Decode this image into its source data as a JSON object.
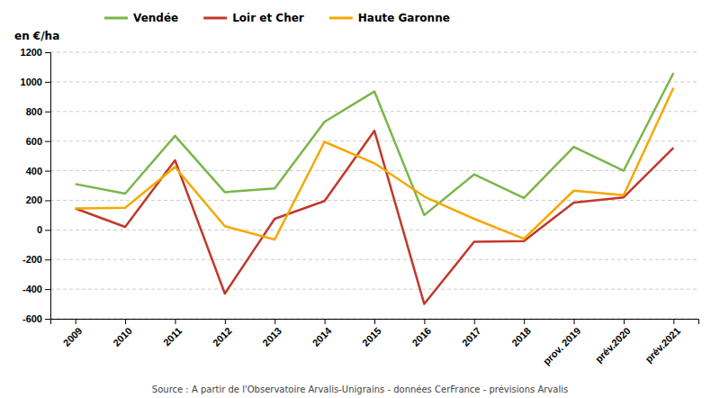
{
  "chart_data": {
    "type": "line",
    "y_label": "en €/ha",
    "annotations": [
      "Source : A partir de l'Observatoire Arvalis-Unigrains - données CerFrance - prévisions Arvalis"
    ],
    "categories": [
      "2009",
      "2010",
      "2011",
      "2012",
      "2013",
      "2014",
      "2015",
      "2016",
      "2017",
      "2018",
      "prov. 2019",
      "prév.2020",
      "prév.2021"
    ],
    "series": [
      {
        "name": "Vendée",
        "color": "#7ab648",
        "values": [
          310,
          245,
          635,
          255,
          280,
          730,
          935,
          100,
          375,
          215,
          560,
          400,
          1060
        ]
      },
      {
        "name": "Loir et Cher",
        "color": "#c0392b",
        "values": [
          145,
          20,
          470,
          -430,
          75,
          195,
          670,
          -500,
          -80,
          -75,
          185,
          220,
          555
        ]
      },
      {
        "name": "Haute Garonne",
        "color": "#f5a800",
        "values": [
          145,
          150,
          425,
          25,
          -65,
          595,
          450,
          225,
          75,
          -60,
          265,
          235,
          960
        ]
      }
    ],
    "ylim": [
      -600,
      1200
    ],
    "yticks": [
      -600,
      -400,
      -200,
      0,
      200,
      400,
      600,
      800,
      1000,
      1200
    ],
    "grid": true,
    "legend": "top"
  }
}
